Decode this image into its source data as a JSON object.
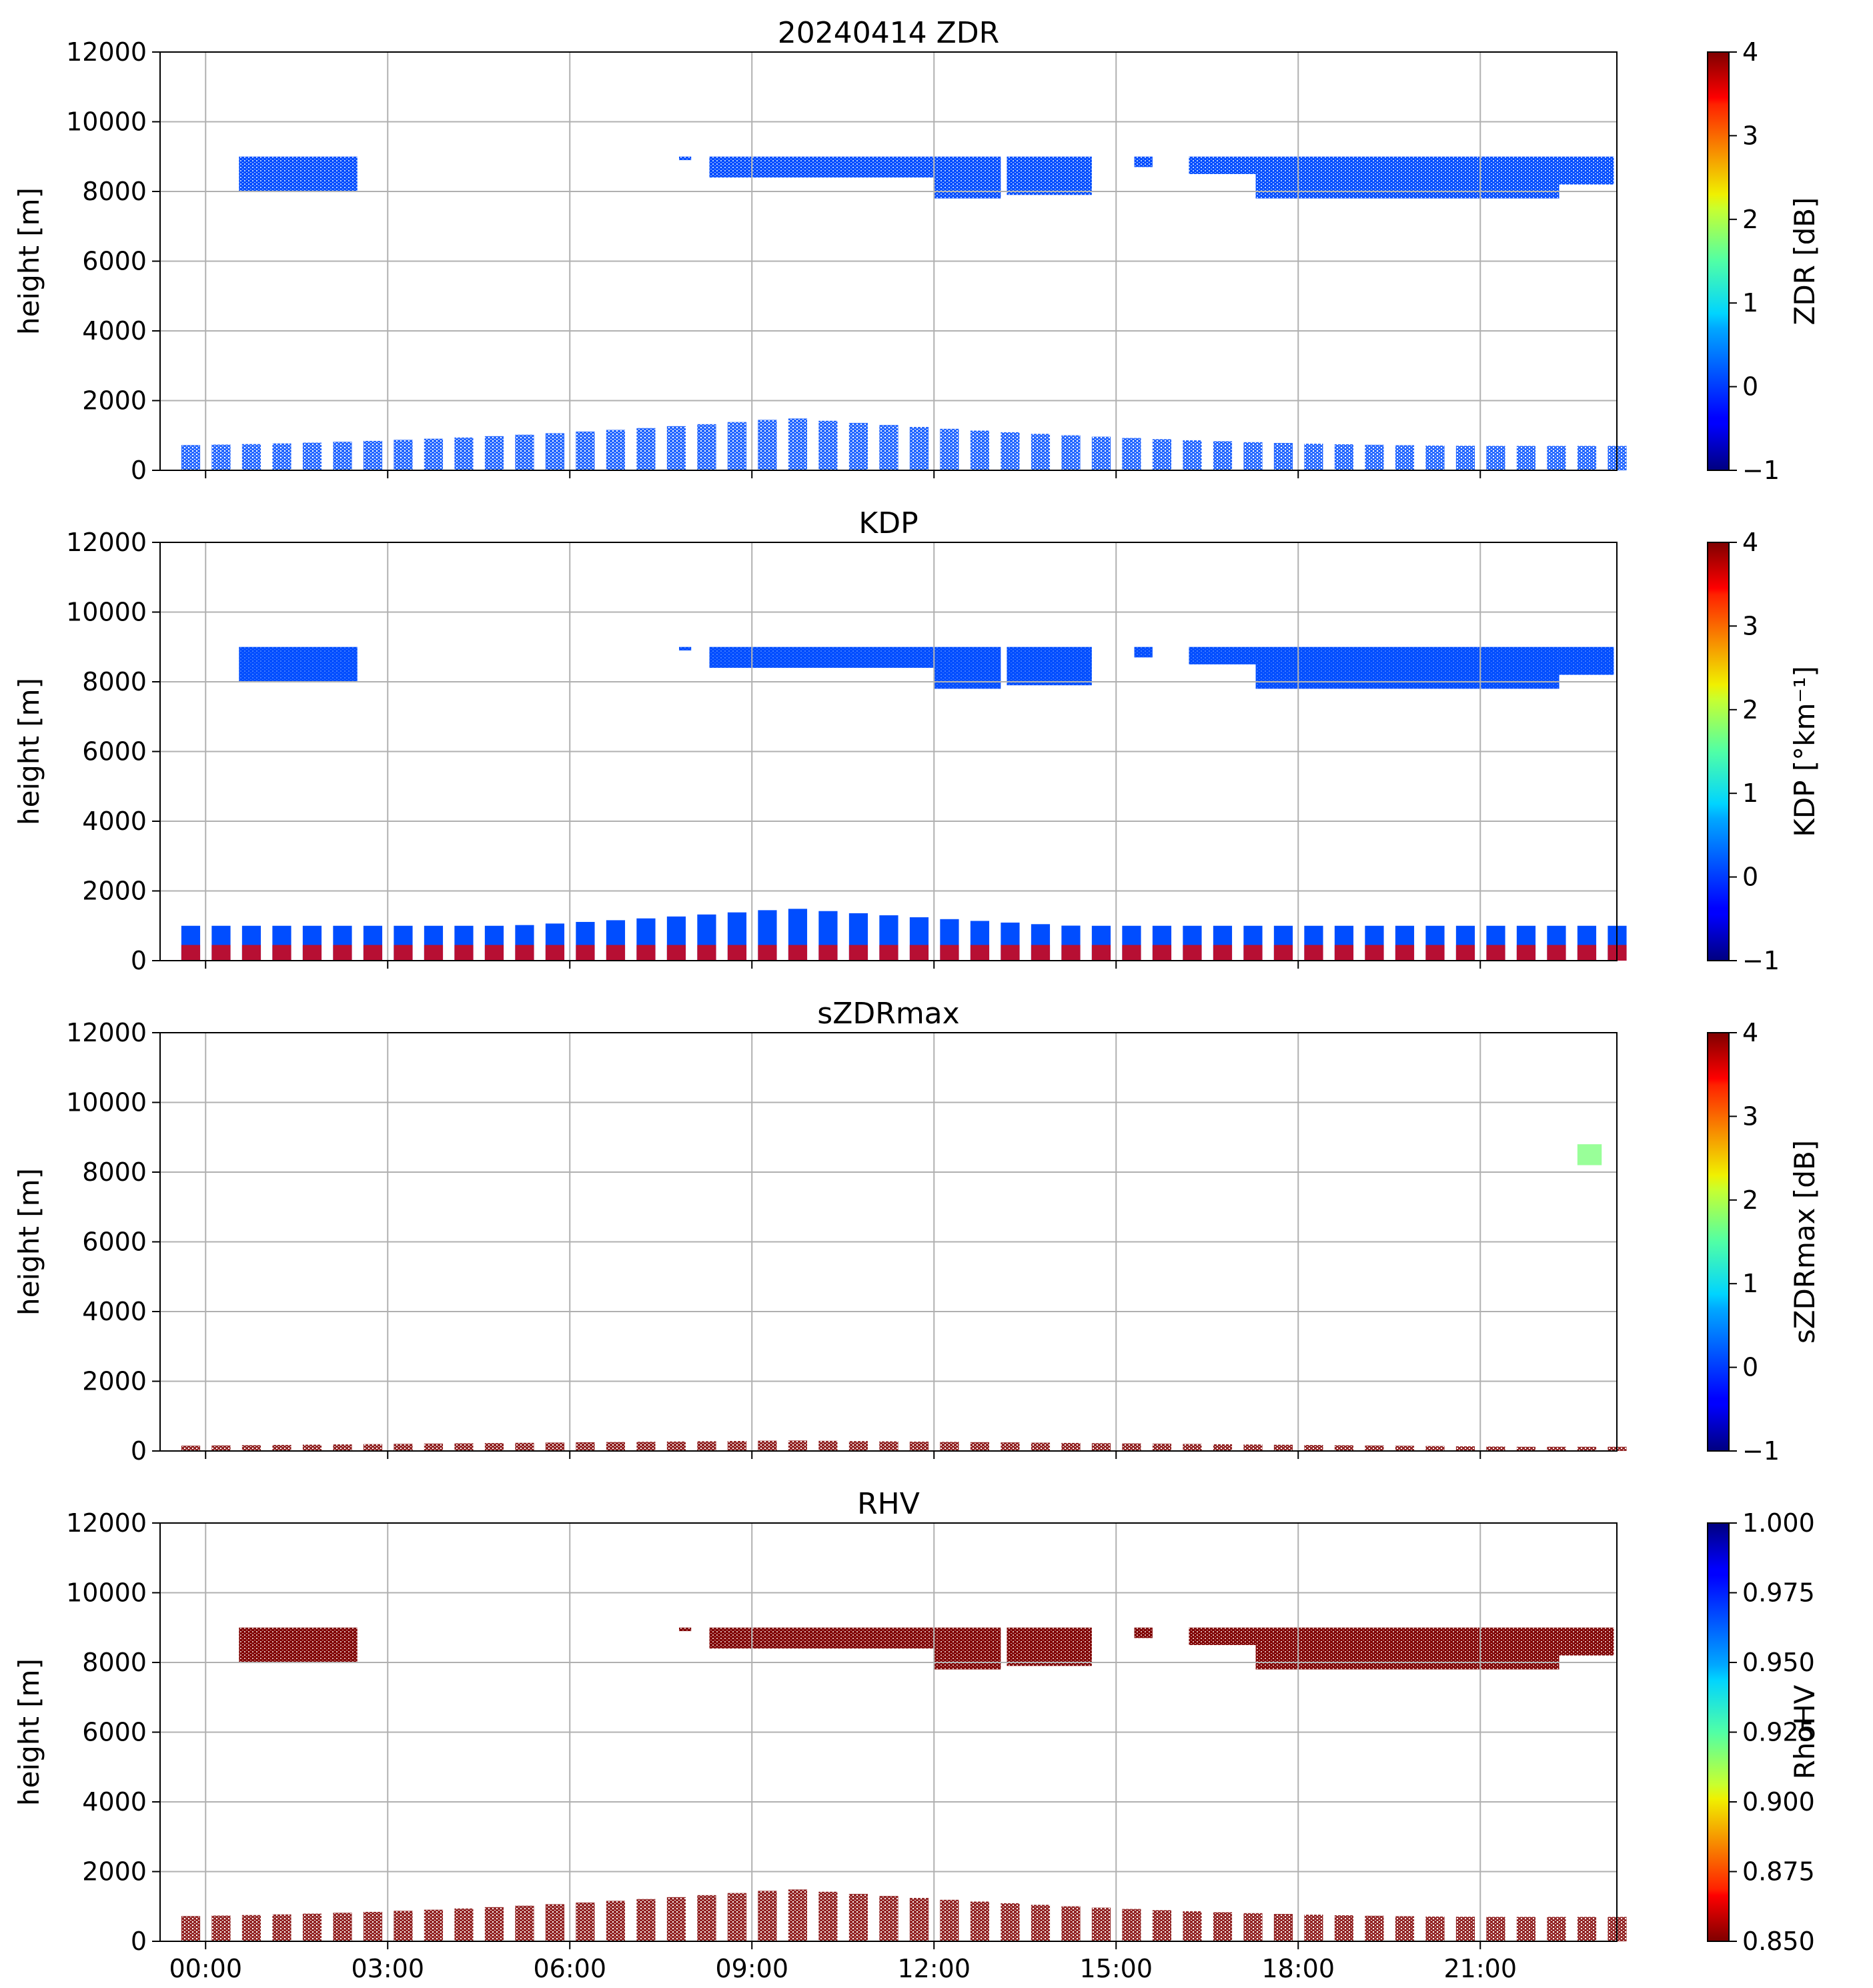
{
  "chart_data": [
    {
      "type": "heatmap",
      "title": "20240414 ZDR",
      "ylabel": "height [m]",
      "ylim": [
        0,
        12000
      ],
      "yticks": [
        "0",
        "2000",
        "4000",
        "6000",
        "8000",
        "10000",
        "12000"
      ],
      "colorbar": {
        "label": "ZDR [dB]",
        "cmap": "jet",
        "range": [
          -1,
          4
        ],
        "ticks": [
          "−1",
          "0",
          "1",
          "2",
          "3",
          "4"
        ]
      },
      "dominant_value": 0.0,
      "upper_layer": {
        "top_m": 9000,
        "bottom_m": 8000
      },
      "lower_layer": {
        "top_m": 900
      }
    },
    {
      "type": "heatmap",
      "title": "KDP",
      "ylabel": "height [m]",
      "ylim": [
        0,
        12000
      ],
      "yticks": [
        "0",
        "2000",
        "4000",
        "6000",
        "8000",
        "10000",
        "12000"
      ],
      "colorbar": {
        "label": "KDP [°km⁻¹]",
        "cmap": "jet",
        "range": [
          -1,
          4
        ],
        "ticks": [
          "−1",
          "0",
          "1",
          "2",
          "3",
          "4"
        ]
      },
      "dominant_value": 0.0,
      "upper_layer": {
        "top_m": 9000,
        "bottom_m": 8000
      },
      "lower_layer": {
        "top_m": 1000,
        "near_surface_value": 3.5
      }
    },
    {
      "type": "heatmap",
      "title": "sZDRmax",
      "ylabel": "height [m]",
      "ylim": [
        0,
        12000
      ],
      "yticks": [
        "0",
        "2000",
        "4000",
        "6000",
        "8000",
        "10000",
        "12000"
      ],
      "colorbar": {
        "label": "sZDRmax [dB]",
        "cmap": "jet",
        "range": [
          -1,
          4
        ],
        "ticks": [
          "−1",
          "0",
          "1",
          "2",
          "3",
          "4"
        ]
      },
      "dominant_value": 2.0,
      "upper_layer": {
        "top_m": 8800,
        "bottom_m": 8200,
        "time_range_h": [
          22.6,
          23.0
        ]
      },
      "lower_layer": {
        "top_m": 300
      }
    },
    {
      "type": "heatmap",
      "title": "RHV",
      "ylabel": "height [m]",
      "ylim": [
        0,
        12000
      ],
      "yticks": [
        "0",
        "2000",
        "4000",
        "6000",
        "8000",
        "10000",
        "12000"
      ],
      "colorbar": {
        "label": "RhoHV",
        "cmap": "jet_r",
        "range": [
          0.85,
          1.0
        ],
        "ticks": [
          "0.850",
          "0.875",
          "0.900",
          "0.925",
          "0.950",
          "0.975",
          "1.000"
        ]
      },
      "dominant_value": 0.85,
      "upper_layer": {
        "top_m": 9000,
        "bottom_m": 8000
      },
      "lower_layer": {
        "top_m": 900
      }
    }
  ],
  "x_axis": {
    "range_h": [
      -0.75,
      23.25
    ],
    "ticks_h": [
      0,
      3,
      6,
      9,
      12,
      15,
      18,
      21
    ],
    "tick_labels": [
      "00:00",
      "03:00",
      "06:00",
      "09:00",
      "12:00",
      "15:00",
      "18:00",
      "21:00"
    ]
  },
  "cloud_segments_upper": [
    [
      0.55,
      2.5,
      8000,
      9000
    ],
    [
      7.8,
      8.0,
      8900,
      9000
    ],
    [
      8.3,
      12.0,
      8400,
      9000
    ],
    [
      12.0,
      13.1,
      7800,
      9000
    ],
    [
      13.2,
      14.6,
      7900,
      9000
    ],
    [
      15.3,
      15.6,
      8700,
      9000
    ],
    [
      16.2,
      17.3,
      8500,
      9000
    ],
    [
      17.3,
      22.3,
      7800,
      9000
    ],
    [
      22.3,
      23.2,
      8200,
      9000
    ]
  ],
  "cloud_segments_lower": {
    "start_h": -0.4,
    "end_h": 23.2,
    "step_h": 0.5,
    "peak_h": 9.5,
    "base_top_m": 700,
    "peak_top_m": 1500
  }
}
